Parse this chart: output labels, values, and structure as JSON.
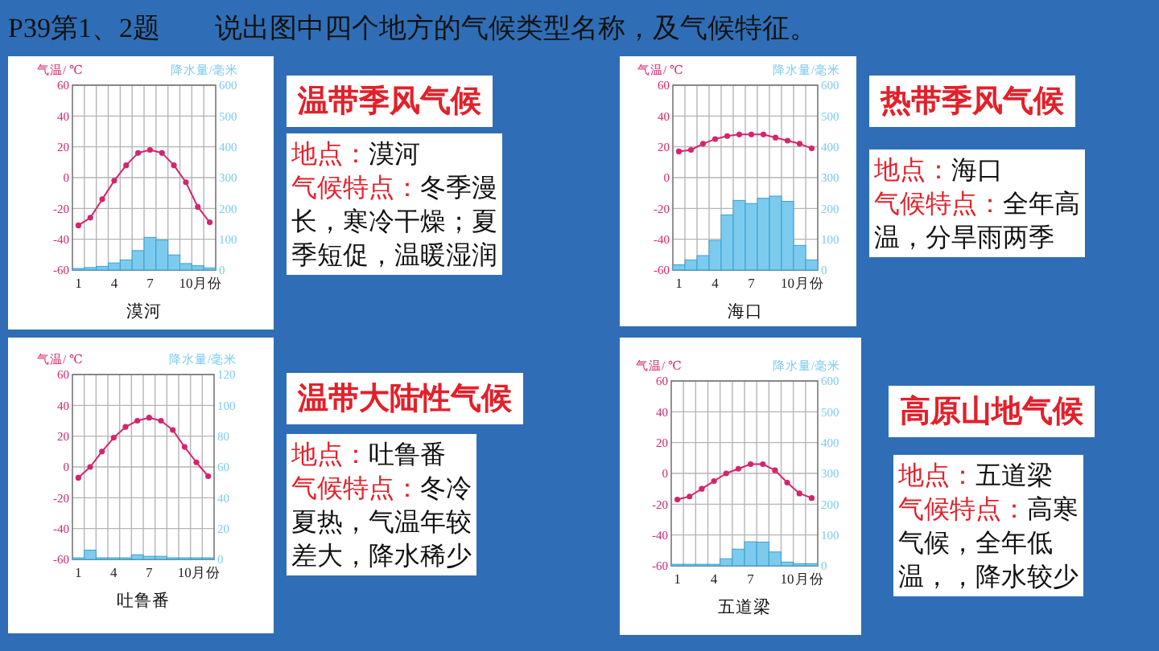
{
  "chart_data": [
    {
      "type": "other",
      "title": "P39第1、2题　　说出图中四个地方的气候类型名称，及气候特征。"
    },
    {
      "type": "bar",
      "title": "漠河",
      "ylabel": "气温/ ℃",
      "y2label": "降水量/毫米",
      "xlabel": "月份",
      "categories": [
        "1",
        null,
        null,
        "4",
        null,
        null,
        "7",
        null,
        null,
        "10",
        null,
        null
      ],
      "ylim": [
        -60,
        60
      ],
      "yticks": [
        -60,
        -40,
        -20,
        0,
        20,
        40,
        60
      ],
      "y2lim": [
        0,
        600
      ],
      "y2ticks": [
        0,
        100,
        200,
        300,
        400,
        500,
        600
      ],
      "grid": true,
      "marker": "circle",
      "series": [
        {
          "type": "bar",
          "axis": "y2",
          "color": "#7ccbee",
          "values": [
            5,
            8,
            12,
            23,
            33,
            63,
            106,
            97,
            49,
            21,
            14,
            7
          ]
        },
        {
          "type": "line",
          "color": "#d6246e",
          "values": [
            -31,
            -26,
            -14,
            -2,
            8,
            16,
            18,
            16,
            8,
            -3,
            -19,
            -29
          ]
        }
      ]
    },
    {
      "type": "other",
      "title": "温带季风气候",
      "annotations": [
        "地点：漠河",
        "气候特点：冬季漫长，寒冷干燥；夏季短促，温暖湿润"
      ]
    },
    {
      "type": "bar",
      "title": "海口",
      "ylabel": "气温/ ℃",
      "y2label": "降水量/毫米",
      "xlabel": "月份",
      "categories": [
        "1",
        null,
        null,
        "4",
        null,
        null,
        "7",
        null,
        null,
        "10",
        null,
        null
      ],
      "ylim": [
        -60,
        60
      ],
      "yticks": [
        -60,
        -40,
        -20,
        0,
        20,
        40,
        60
      ],
      "y2lim": [
        0,
        600
      ],
      "y2ticks": [
        0,
        100,
        200,
        300,
        400,
        500,
        600
      ],
      "grid": true,
      "marker": "circle",
      "series": [
        {
          "type": "bar",
          "axis": "y2",
          "color": "#7ccbee",
          "values": [
            17,
            33,
            47,
            96,
            179,
            226,
            216,
            233,
            240,
            223,
            80,
            33
          ]
        },
        {
          "type": "line",
          "color": "#d6246e",
          "values": [
            17,
            18,
            22,
            25,
            27,
            28,
            28,
            28,
            26,
            24,
            22,
            19
          ]
        }
      ]
    },
    {
      "type": "other",
      "title": "热带季风气候",
      "annotations": [
        "地点：海口",
        "气候特点：全年高温，分旱雨两季"
      ]
    },
    {
      "type": "bar",
      "title": "吐鲁番",
      "ylabel": "气温/ ℃",
      "y2label": "降水量/毫米",
      "xlabel": "月份",
      "categories": [
        "1",
        null,
        null,
        "4",
        null,
        null,
        "7",
        null,
        null,
        "10",
        null,
        null
      ],
      "ylim": [
        -60,
        60
      ],
      "yticks": [
        -60,
        -40,
        -20,
        0,
        20,
        40,
        60
      ],
      "y2lim": [
        0,
        120
      ],
      "y2ticks": [
        0,
        20,
        40,
        60,
        80,
        100,
        120
      ],
      "grid": true,
      "marker": "circle",
      "series": [
        {
          "type": "bar",
          "axis": "y2",
          "color": "#7ccbee",
          "values": [
            1,
            6,
            1,
            1,
            1,
            3,
            2,
            2,
            1,
            1,
            1,
            1
          ]
        },
        {
          "type": "line",
          "color": "#d6246e",
          "values": [
            -7,
            0,
            10,
            19,
            26,
            30,
            32,
            30,
            24,
            13,
            3,
            -6
          ]
        }
      ]
    },
    {
      "type": "other",
      "title": "温带大陆性气候",
      "annotations": [
        "地点：吐鲁番",
        "气候特点：冬冷夏热，气温年较差大，降水稀少"
      ]
    },
    {
      "type": "bar",
      "title": "五道梁",
      "ylabel": "气温/ ℃",
      "y2label": "降水量/毫米",
      "xlabel": "月份",
      "categories": [
        "1",
        null,
        null,
        "4",
        null,
        null,
        "7",
        null,
        null,
        "10",
        null,
        null
      ],
      "ylim": [
        -60,
        60
      ],
      "yticks": [
        -60,
        -40,
        -20,
        0,
        20,
        40,
        60
      ],
      "y2lim": [
        0,
        600
      ],
      "y2ticks": [
        0,
        100,
        200,
        300,
        400,
        500,
        600
      ],
      "grid": true,
      "marker": "circle",
      "series": [
        {
          "type": "bar",
          "axis": "y2",
          "color": "#7ccbee",
          "values": [
            5,
            5,
            5,
            5,
            23,
            54,
            78,
            77,
            45,
            12,
            7,
            7
          ]
        },
        {
          "type": "line",
          "color": "#d6246e",
          "values": [
            -17,
            -15,
            -10,
            -5,
            0,
            3,
            6,
            6,
            2,
            -6,
            -13,
            -16
          ]
        }
      ]
    },
    {
      "type": "other",
      "title": "高原山地气候",
      "annotations": [
        "地点：五道梁",
        "气候特点：高寒气候，全年低温，，降水较少"
      ]
    }
  ]
}
